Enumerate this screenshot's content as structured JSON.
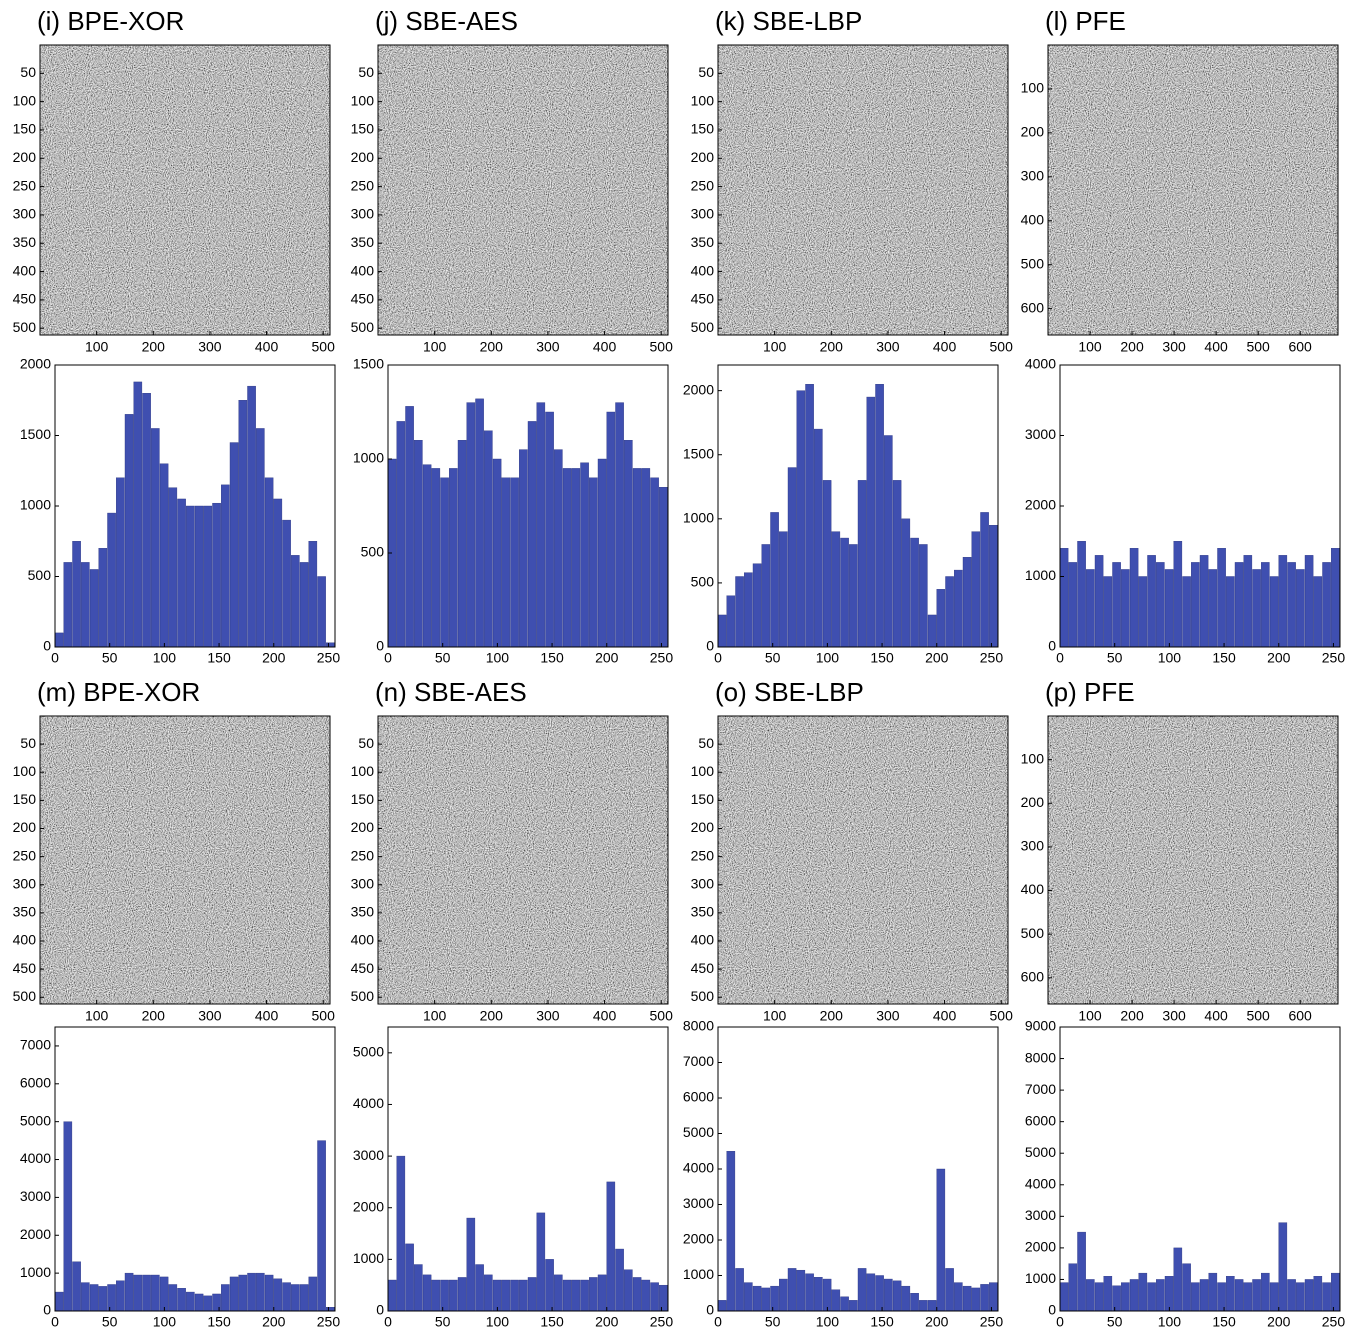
{
  "chart_data": [
    {
      "type": "image",
      "title": "(i) BPE-XOR",
      "xlim": [
        0,
        512
      ],
      "ylim": [
        0,
        512
      ],
      "xticks": [
        100,
        200,
        300,
        400,
        500
      ],
      "yticks": [
        50,
        100,
        150,
        200,
        250,
        300,
        350,
        400,
        450,
        500
      ]
    },
    {
      "type": "histogram",
      "color": "#3f4fb0",
      "xlim": [
        0,
        256
      ],
      "ylim": [
        0,
        2000
      ],
      "xticks": [
        0,
        50,
        100,
        150,
        200,
        250
      ],
      "yticks": [
        0,
        500,
        1000,
        1500,
        2000
      ],
      "bins": [
        0,
        8,
        16,
        24,
        32,
        40,
        48,
        56,
        64,
        72,
        80,
        88,
        96,
        104,
        112,
        120,
        128,
        136,
        144,
        152,
        160,
        168,
        176,
        184,
        192,
        200,
        208,
        216,
        224,
        232,
        240,
        248,
        256
      ],
      "values": [
        100,
        600,
        750,
        600,
        550,
        700,
        950,
        1200,
        1650,
        1880,
        1800,
        1550,
        1300,
        1130,
        1050,
        1000,
        1000,
        1000,
        1020,
        1150,
        1450,
        1750,
        1850,
        1550,
        1200,
        1050,
        900,
        650,
        600,
        750,
        500,
        30
      ]
    },
    {
      "type": "image",
      "title": "(j) SBE-AES",
      "xlim": [
        0,
        512
      ],
      "ylim": [
        0,
        512
      ],
      "xticks": [
        100,
        200,
        300,
        400,
        500
      ],
      "yticks": [
        50,
        100,
        150,
        200,
        250,
        300,
        350,
        400,
        450,
        500
      ]
    },
    {
      "type": "histogram",
      "color": "#3f4fb0",
      "xlim": [
        0,
        256
      ],
      "ylim": [
        0,
        1500
      ],
      "xticks": [
        0,
        50,
        100,
        150,
        200,
        250
      ],
      "yticks": [
        0,
        500,
        1000,
        1500
      ],
      "bins": [
        0,
        8,
        16,
        24,
        32,
        40,
        48,
        56,
        64,
        72,
        80,
        88,
        96,
        104,
        112,
        120,
        128,
        136,
        144,
        152,
        160,
        168,
        176,
        184,
        192,
        200,
        208,
        216,
        224,
        232,
        240,
        248,
        256
      ],
      "values": [
        1000,
        1200,
        1280,
        1100,
        970,
        950,
        900,
        950,
        1100,
        1300,
        1320,
        1150,
        1000,
        900,
        900,
        1050,
        1200,
        1300,
        1250,
        1050,
        950,
        950,
        980,
        900,
        1000,
        1250,
        1300,
        1100,
        950,
        950,
        900,
        850
      ]
    },
    {
      "type": "image",
      "title": "(k) SBE-LBP",
      "xlim": [
        0,
        512
      ],
      "ylim": [
        0,
        512
      ],
      "xticks": [
        100,
        200,
        300,
        400,
        500
      ],
      "yticks": [
        50,
        100,
        150,
        200,
        250,
        300,
        350,
        400,
        450,
        500
      ]
    },
    {
      "type": "histogram",
      "color": "#3f4fb0",
      "xlim": [
        0,
        256
      ],
      "ylim": [
        0,
        2200
      ],
      "xticks": [
        0,
        50,
        100,
        150,
        200,
        250
      ],
      "yticks": [
        0,
        500,
        1000,
        1500,
        2000
      ],
      "bins": [
        0,
        8,
        16,
        24,
        32,
        40,
        48,
        56,
        64,
        72,
        80,
        88,
        96,
        104,
        112,
        120,
        128,
        136,
        144,
        152,
        160,
        168,
        176,
        184,
        192,
        200,
        208,
        216,
        224,
        232,
        240,
        248,
        256
      ],
      "values": [
        250,
        400,
        550,
        580,
        650,
        800,
        1050,
        900,
        1400,
        2000,
        2050,
        1700,
        1300,
        900,
        850,
        800,
        1300,
        1950,
        2050,
        1650,
        1300,
        1000,
        850,
        800,
        250,
        450,
        550,
        600,
        700,
        900,
        1050,
        950
      ]
    },
    {
      "type": "image",
      "title": "(l) PFE",
      "xlim": [
        0,
        690
      ],
      "ylim": [
        0,
        660
      ],
      "xticks": [
        100,
        200,
        300,
        400,
        500,
        600
      ],
      "yticks": [
        100,
        200,
        300,
        400,
        500,
        600
      ]
    },
    {
      "type": "histogram",
      "color": "#3f4fb0",
      "xlim": [
        0,
        256
      ],
      "ylim": [
        0,
        4000
      ],
      "xticks": [
        0,
        50,
        100,
        150,
        200,
        250
      ],
      "yticks": [
        0,
        1000,
        2000,
        3000,
        4000
      ],
      "bins": [
        0,
        8,
        16,
        24,
        32,
        40,
        48,
        56,
        64,
        72,
        80,
        88,
        96,
        104,
        112,
        120,
        128,
        136,
        144,
        152,
        160,
        168,
        176,
        184,
        192,
        200,
        208,
        216,
        224,
        232,
        240,
        248,
        256
      ],
      "values": [
        1400,
        1200,
        1500,
        1100,
        1300,
        1000,
        1200,
        1100,
        1400,
        1000,
        1300,
        1200,
        1100,
        1500,
        1000,
        1200,
        1300,
        1100,
        1400,
        1000,
        1200,
        1300,
        1100,
        1200,
        1000,
        1300,
        1200,
        1100,
        1300,
        1000,
        1200,
        1400
      ]
    },
    {
      "type": "image",
      "title": "(m) BPE-XOR",
      "xlim": [
        0,
        512
      ],
      "ylim": [
        0,
        512
      ],
      "xticks": [
        100,
        200,
        300,
        400,
        500
      ],
      "yticks": [
        50,
        100,
        150,
        200,
        250,
        300,
        350,
        400,
        450,
        500
      ]
    },
    {
      "type": "histogram",
      "color": "#3f4fb0",
      "xlim": [
        0,
        256
      ],
      "ylim": [
        0,
        7500
      ],
      "xticks": [
        0,
        50,
        100,
        150,
        200,
        250
      ],
      "yticks": [
        0,
        1000,
        2000,
        3000,
        4000,
        5000,
        6000,
        7000
      ],
      "bins": [
        0,
        8,
        16,
        24,
        32,
        40,
        48,
        56,
        64,
        72,
        80,
        88,
        96,
        104,
        112,
        120,
        128,
        136,
        144,
        152,
        160,
        168,
        176,
        184,
        192,
        200,
        208,
        216,
        224,
        232,
        240,
        248,
        256
      ],
      "values": [
        500,
        5000,
        1300,
        750,
        700,
        650,
        700,
        800,
        1000,
        950,
        950,
        950,
        900,
        700,
        600,
        500,
        450,
        400,
        450,
        700,
        900,
        950,
        1000,
        1000,
        950,
        850,
        750,
        700,
        700,
        900,
        4500,
        100
      ]
    },
    {
      "type": "image",
      "title": "(n) SBE-AES",
      "xlim": [
        0,
        512
      ],
      "ylim": [
        0,
        512
      ],
      "xticks": [
        100,
        200,
        300,
        400,
        500
      ],
      "yticks": [
        50,
        100,
        150,
        200,
        250,
        300,
        350,
        400,
        450,
        500
      ]
    },
    {
      "type": "histogram",
      "color": "#3f4fb0",
      "xlim": [
        0,
        256
      ],
      "ylim": [
        0,
        5500
      ],
      "xticks": [
        0,
        50,
        100,
        150,
        200,
        250
      ],
      "yticks": [
        0,
        1000,
        2000,
        3000,
        4000,
        5000
      ],
      "bins": [
        0,
        8,
        16,
        24,
        32,
        40,
        48,
        56,
        64,
        72,
        80,
        88,
        96,
        104,
        112,
        120,
        128,
        136,
        144,
        152,
        160,
        168,
        176,
        184,
        192,
        200,
        208,
        216,
        224,
        232,
        240,
        248,
        256
      ],
      "values": [
        600,
        3000,
        1300,
        900,
        700,
        600,
        600,
        600,
        650,
        1800,
        900,
        700,
        600,
        600,
        600,
        600,
        650,
        1900,
        1000,
        700,
        600,
        600,
        600,
        650,
        700,
        2500,
        1200,
        800,
        650,
        600,
        550,
        500
      ]
    },
    {
      "type": "image",
      "title": "(o) SBE-LBP",
      "xlim": [
        0,
        512
      ],
      "ylim": [
        0,
        512
      ],
      "xticks": [
        100,
        200,
        300,
        400,
        500
      ],
      "yticks": [
        50,
        100,
        150,
        200,
        250,
        300,
        350,
        400,
        450,
        500
      ]
    },
    {
      "type": "histogram",
      "color": "#3f4fb0",
      "xlim": [
        0,
        256
      ],
      "ylim": [
        0,
        8000
      ],
      "xticks": [
        0,
        50,
        100,
        150,
        200,
        250
      ],
      "yticks": [
        0,
        1000,
        2000,
        3000,
        4000,
        5000,
        6000,
        7000,
        8000
      ],
      "bins": [
        0,
        8,
        16,
        24,
        32,
        40,
        48,
        56,
        64,
        72,
        80,
        88,
        96,
        104,
        112,
        120,
        128,
        136,
        144,
        152,
        160,
        168,
        176,
        184,
        192,
        200,
        208,
        216,
        224,
        232,
        240,
        248,
        256
      ],
      "values": [
        300,
        4500,
        1200,
        800,
        700,
        650,
        700,
        900,
        1200,
        1150,
        1050,
        950,
        900,
        600,
        400,
        300,
        1200,
        1050,
        1000,
        900,
        850,
        700,
        500,
        300,
        300,
        4000,
        1200,
        800,
        700,
        650,
        750,
        800
      ]
    },
    {
      "type": "image",
      "title": "(p) PFE",
      "xlim": [
        0,
        690
      ],
      "ylim": [
        0,
        660
      ],
      "xticks": [
        100,
        200,
        300,
        400,
        500,
        600
      ],
      "yticks": [
        100,
        200,
        300,
        400,
        500,
        600
      ]
    },
    {
      "type": "histogram",
      "color": "#3f4fb0",
      "xlim": [
        0,
        256
      ],
      "ylim": [
        0,
        9000
      ],
      "xticks": [
        0,
        50,
        100,
        150,
        200,
        250
      ],
      "yticks": [
        0,
        1000,
        2000,
        3000,
        4000,
        5000,
        6000,
        7000,
        8000,
        9000
      ],
      "bins": [
        0,
        8,
        16,
        24,
        32,
        40,
        48,
        56,
        64,
        72,
        80,
        88,
        96,
        104,
        112,
        120,
        128,
        136,
        144,
        152,
        160,
        168,
        176,
        184,
        192,
        200,
        208,
        216,
        224,
        232,
        240,
        248,
        256
      ],
      "values": [
        900,
        1500,
        2500,
        1000,
        900,
        1100,
        800,
        900,
        1000,
        1200,
        900,
        1000,
        1100,
        2000,
        1500,
        900,
        1000,
        1200,
        900,
        1100,
        1000,
        900,
        1000,
        1200,
        900,
        2800,
        1000,
        900,
        1000,
        1100,
        900,
        1200
      ]
    }
  ]
}
